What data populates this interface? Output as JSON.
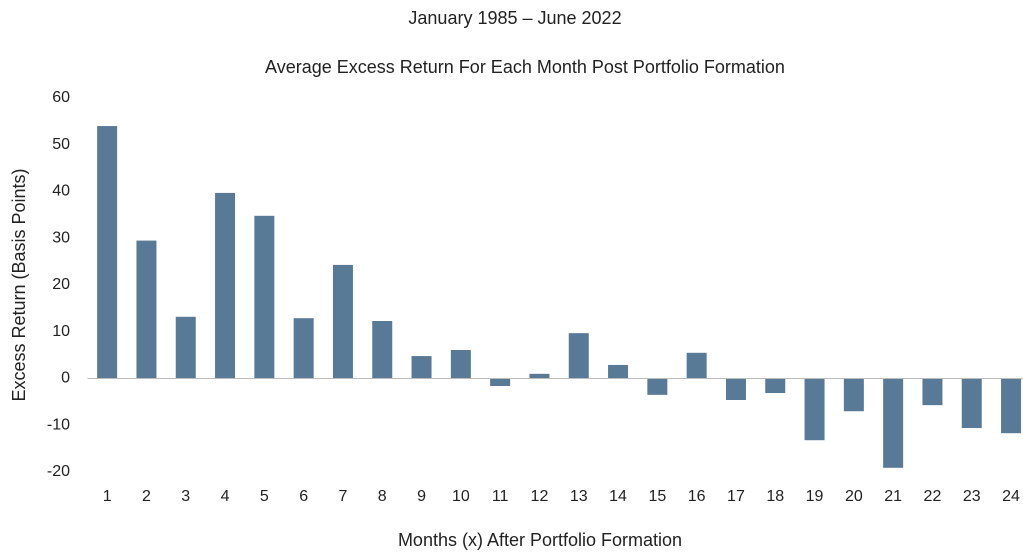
{
  "chart_data": {
    "type": "bar",
    "supertitle": "January 1985 – June 2022",
    "title": "Average Excess Return For Each Month Post Portfolio Formation",
    "x_label": "Months (x) After Portfolio Formation",
    "y_label": "Excess Return (Basis Points)",
    "categories": [
      "1",
      "2",
      "3",
      "4",
      "5",
      "6",
      "7",
      "8",
      "9",
      "10",
      "11",
      "12",
      "13",
      "14",
      "15",
      "16",
      "17",
      "18",
      "19",
      "20",
      "21",
      "22",
      "23",
      "24"
    ],
    "values": [
      54,
      29.5,
      13.2,
      39.7,
      34.8,
      12.9,
      24.3,
      12.3,
      4.8,
      6.1,
      -1.6,
      1.0,
      9.7,
      2.9,
      -3.5,
      5.5,
      -4.6,
      -3.1,
      -13.2,
      -7.0,
      -19.1,
      -5.7,
      -10.6,
      -11.7
    ],
    "color": "#587a97",
    "ylim": [
      -20,
      60
    ],
    "yticks": [
      -20,
      -10,
      0,
      10,
      20,
      30,
      40,
      50,
      60
    ],
    "grid": false
  }
}
